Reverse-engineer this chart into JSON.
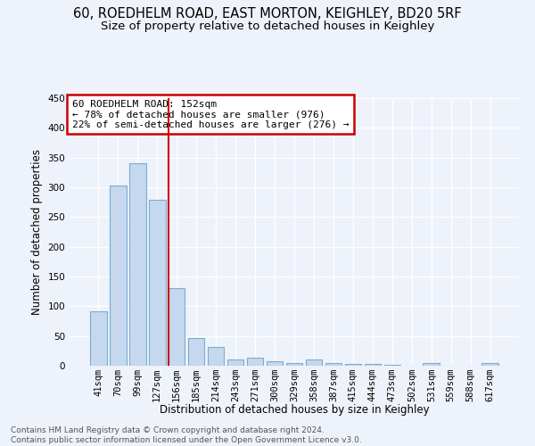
{
  "title1": "60, ROEDHELM ROAD, EAST MORTON, KEIGHLEY, BD20 5RF",
  "title2": "Size of property relative to detached houses in Keighley",
  "xlabel": "Distribution of detached houses by size in Keighley",
  "ylabel": "Number of detached properties",
  "footnote": "Contains HM Land Registry data © Crown copyright and database right 2024.\nContains public sector information licensed under the Open Government Licence v3.0.",
  "categories": [
    "41sqm",
    "70sqm",
    "99sqm",
    "127sqm",
    "156sqm",
    "185sqm",
    "214sqm",
    "243sqm",
    "271sqm",
    "300sqm",
    "329sqm",
    "358sqm",
    "387sqm",
    "415sqm",
    "444sqm",
    "473sqm",
    "502sqm",
    "531sqm",
    "559sqm",
    "588sqm",
    "617sqm"
  ],
  "values": [
    91,
    303,
    340,
    279,
    131,
    47,
    31,
    10,
    13,
    7,
    5,
    10,
    5,
    3,
    3,
    2,
    0,
    4,
    0,
    0,
    4
  ],
  "bar_color": "#c5d8ee",
  "bar_edge_color": "#7aadd4",
  "highlight_line_color": "#cc0000",
  "annotation_text": "60 ROEDHELM ROAD: 152sqm\n← 78% of detached houses are smaller (976)\n22% of semi-detached houses are larger (276) →",
  "annotation_box_color": "#cc0000",
  "ylim": [
    0,
    450
  ],
  "yticks": [
    0,
    50,
    100,
    150,
    200,
    250,
    300,
    350,
    400,
    450
  ],
  "bg_color": "#eef2fa",
  "grid_color": "#d8e0ee",
  "title_fontsize": 10.5,
  "subtitle_fontsize": 9.5,
  "axis_label_fontsize": 8.5,
  "tick_fontsize": 7.5,
  "footnote_fontsize": 6.5
}
